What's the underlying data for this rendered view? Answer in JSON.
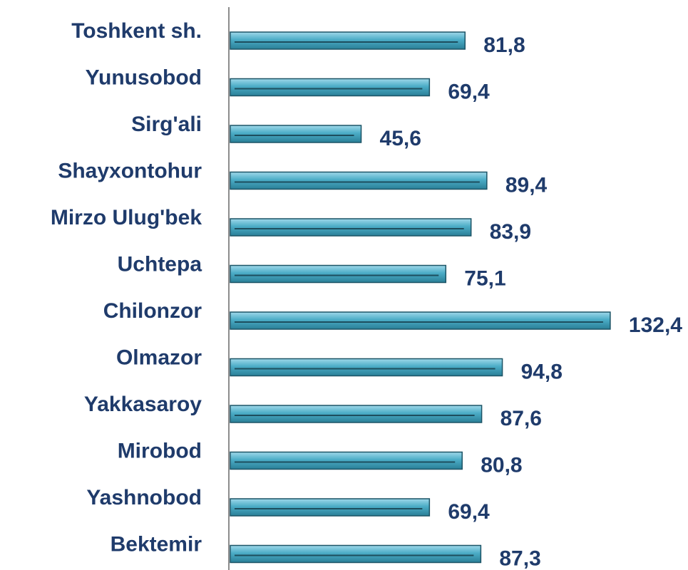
{
  "chart_data": {
    "type": "barh",
    "categories": [
      "Toshkent sh.",
      "Yunusobod",
      "Sirg'ali",
      "Shayxontohur",
      "Mirzo Ulug'bek",
      "Uchtepa",
      "Chilonzor",
      "Olmazor",
      "Yakkasaroy",
      "Mirobod",
      "Yashnobod",
      "Bektemir"
    ],
    "values": [
      81.8,
      69.4,
      45.6,
      89.4,
      83.9,
      75.1,
      132.4,
      94.8,
      87.6,
      80.8,
      69.4,
      87.3
    ],
    "value_labels": [
      "81,8",
      "69,4",
      "45,6",
      "89,4",
      "83,9",
      "75,1",
      "132,4",
      "94,8",
      "87,6",
      "80,8",
      "69,4",
      "87,3"
    ],
    "color": "#4bacc6",
    "xlim": [
      0,
      160
    ]
  }
}
